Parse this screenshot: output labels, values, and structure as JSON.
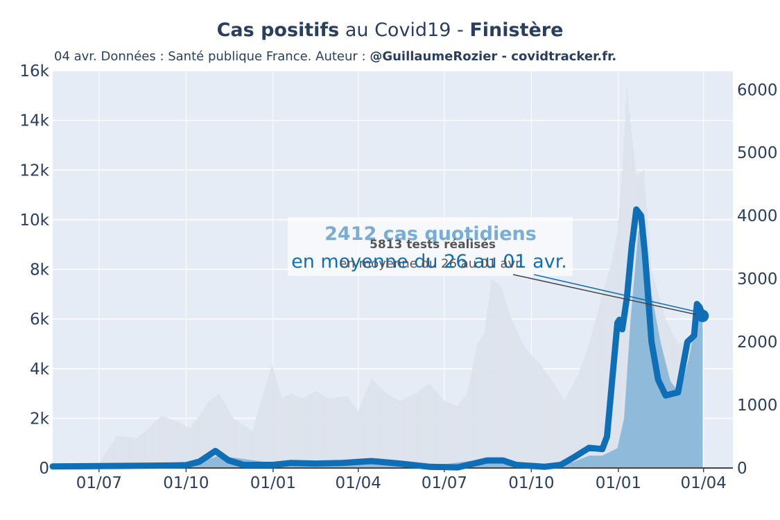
{
  "chart_data": {
    "type": "line",
    "title": {
      "bold_part": "Cas positifs",
      "middle_part": " au Covid19 - ",
      "region": "Finistère"
    },
    "subtitle": {
      "plain_part": "04 avr. Données : Santé publique France. Auteur : ",
      "author_part": "@GuillaumeRozier - covidtracker.fr."
    },
    "x_ticks": [
      "01/07",
      "01/10",
      "01/01",
      "01/04",
      "01/07",
      "01/10",
      "01/01",
      "01/04"
    ],
    "x_tick_dates": [
      "2020-07-01",
      "2020-10-01",
      "2021-01-01",
      "2021-04-01",
      "2021-07-01",
      "2021-10-01",
      "2022-01-01",
      "2022-04-01"
    ],
    "x_range": [
      "2020-05-13",
      "2022-05-02"
    ],
    "y_left": {
      "range": [
        0,
        16000
      ],
      "ticks": [
        0,
        2000,
        4000,
        6000,
        8000,
        10000,
        12000,
        14000,
        16000
      ],
      "tick_labels": [
        "0",
        "2k",
        "4k",
        "6k",
        "8k",
        "10k",
        "12k",
        "14k",
        "16k"
      ]
    },
    "y_right": {
      "range": [
        0,
        6300
      ],
      "ticks": [
        0,
        1000,
        2000,
        3000,
        4000,
        5000,
        6000
      ],
      "tick_labels": [
        "0",
        "1000",
        "2000",
        "3000",
        "4000",
        "5000",
        "6000"
      ]
    },
    "grid": true,
    "series": [
      {
        "axis": "left",
        "style": "bars",
        "color": "#dde3ec",
        "x": [
          "2020-05-13",
          "2020-06-15",
          "2020-07-01",
          "2020-07-20",
          "2020-08-10",
          "2020-08-25",
          "2020-09-05",
          "2020-09-20",
          "2020-10-05",
          "2020-10-15",
          "2020-10-25",
          "2020-11-05",
          "2020-11-20",
          "2020-12-10",
          "2020-12-31",
          "2021-01-10",
          "2021-01-20",
          "2021-02-01",
          "2021-02-15",
          "2021-03-01",
          "2021-03-20",
          "2021-04-01",
          "2021-04-15",
          "2021-05-01",
          "2021-05-15",
          "2021-06-01",
          "2021-06-15",
          "2021-07-01",
          "2021-07-15",
          "2021-07-25",
          "2021-08-05",
          "2021-08-12",
          "2021-08-20",
          "2021-08-30",
          "2021-09-10",
          "2021-09-25",
          "2021-10-10",
          "2021-10-25",
          "2021-11-05",
          "2021-11-20",
          "2021-12-01",
          "2021-12-15",
          "2021-12-25",
          "2021-12-31",
          "2022-01-05",
          "2022-01-10",
          "2022-01-20",
          "2022-01-28",
          "2022-02-05",
          "2022-02-20",
          "2022-03-05",
          "2022-03-20",
          "2022-03-31"
        ],
        "values": [
          0,
          0,
          200,
          1300,
          1200,
          1700,
          2100,
          1900,
          1600,
          2100,
          2700,
          3000,
          2000,
          1500,
          4200,
          2800,
          3000,
          2800,
          3100,
          2800,
          2900,
          2300,
          3600,
          3000,
          2700,
          3000,
          3400,
          2700,
          2500,
          3000,
          5000,
          5400,
          7600,
          7300,
          6000,
          4800,
          4200,
          3400,
          2700,
          3800,
          5000,
          7000,
          8300,
          9500,
          12000,
          15300,
          11800,
          12000,
          8000,
          6000,
          5000,
          5200,
          5700
        ]
      },
      {
        "axis": "left",
        "style": "area",
        "color": "#6fa8d2",
        "x": [
          "2020-05-13",
          "2020-10-01",
          "2020-10-20",
          "2020-11-05",
          "2021-01-01",
          "2021-04-01",
          "2021-07-01",
          "2021-08-10",
          "2021-08-31",
          "2021-10-01",
          "2021-11-01",
          "2021-11-15",
          "2021-12-01",
          "2021-12-15",
          "2021-12-31",
          "2022-01-07",
          "2022-01-14",
          "2022-01-22",
          "2022-01-29",
          "2022-02-05",
          "2022-02-15",
          "2022-02-25",
          "2022-03-07",
          "2022-03-17",
          "2022-03-27",
          "2022-03-31"
        ],
        "values": [
          0,
          60,
          300,
          500,
          200,
          300,
          150,
          350,
          400,
          100,
          100,
          250,
          500,
          500,
          800,
          2000,
          6000,
          9500,
          10000,
          7000,
          5000,
          3500,
          3000,
          4500,
          6500,
          6200
        ]
      },
      {
        "axis": "right",
        "style": "line",
        "name": "cas quotidiens",
        "color": "#0f6fb6",
        "x": [
          "2020-05-13",
          "2020-08-15",
          "2020-09-15",
          "2020-10-01",
          "2020-10-15",
          "2020-11-01",
          "2020-11-15",
          "2020-12-01",
          "2021-01-01",
          "2021-01-20",
          "2021-02-15",
          "2021-03-15",
          "2021-04-15",
          "2021-05-15",
          "2021-06-15",
          "2021-07-15",
          "2021-08-15",
          "2021-09-01",
          "2021-09-15",
          "2021-10-15",
          "2021-11-01",
          "2021-11-15",
          "2021-12-01",
          "2021-12-15",
          "2021-12-20",
          "2021-12-31",
          "2022-01-02",
          "2022-01-05",
          "2022-01-10",
          "2022-01-15",
          "2022-01-20",
          "2022-01-25",
          "2022-01-29",
          "2022-02-05",
          "2022-02-12",
          "2022-02-20",
          "2022-03-05",
          "2022-03-15",
          "2022-03-22",
          "2022-03-25",
          "2022-03-28",
          "2022-03-31"
        ],
        "values": [
          25,
          35,
          40,
          45,
          100,
          270,
          120,
          50,
          50,
          80,
          70,
          80,
          110,
          70,
          20,
          10,
          120,
          120,
          50,
          20,
          50,
          170,
          320,
          300,
          500,
          2300,
          2350,
          2200,
          2700,
          3500,
          4100,
          4000,
          3400,
          2000,
          1400,
          1150,
          1200,
          2000,
          2100,
          2600,
          2550,
          2412
        ]
      }
    ],
    "annotations": [
      {
        "date": "2022-03-31",
        "value": 2412,
        "axis": "right",
        "headline": "2412 cas quotidiens",
        "detail": "en moyenne du 26 au 01 avr.",
        "color": "#0f6fb6"
      },
      {
        "date": "2022-03-31",
        "value": 2412,
        "axis": "right",
        "headline": "5813 tests réalisés",
        "detail": "en moyenne du 26 au 01 avr.",
        "color": "#555555"
      }
    ]
  }
}
